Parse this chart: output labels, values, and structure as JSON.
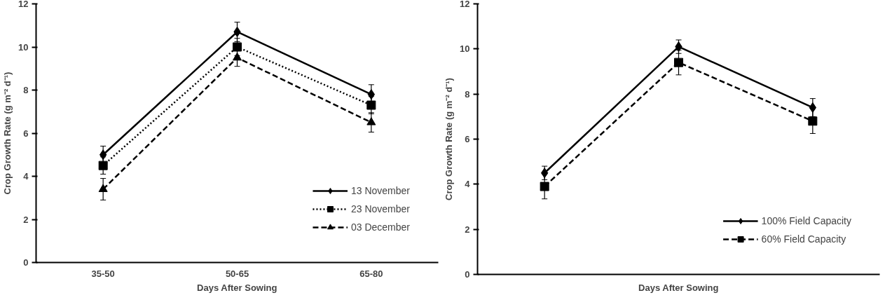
{
  "chart_data": [
    {
      "type": "line",
      "xlabel": "Days After Sowing",
      "ylabel": "Crop Growth Rate (g m⁻² d⁻¹)",
      "categories": [
        "35-50",
        "50-65",
        "65-80"
      ],
      "ylim": [
        0,
        12
      ],
      "yticks": [
        0,
        2,
        4,
        6,
        8,
        10,
        12
      ],
      "grid": false,
      "legend": "bottom right",
      "series": [
        {
          "name": "13 November",
          "color": "#000000",
          "marker": "diamond",
          "line_style": "solid",
          "values": [
            5.0,
            10.7,
            7.8
          ],
          "errors": [
            0.4,
            0.45,
            0.45
          ]
        },
        {
          "name": "23 November",
          "color": "#000000",
          "marker": "square",
          "line_style": "dotted",
          "values": [
            4.5,
            10.0,
            7.3
          ],
          "errors": [
            0.4,
            0.4,
            0.4
          ]
        },
        {
          "name": "03 December",
          "color": "#000000",
          "marker": "triangle",
          "line_style": "dashed",
          "values": [
            3.4,
            9.5,
            6.5
          ],
          "errors": [
            0.5,
            0.4,
            0.45
          ]
        }
      ]
    },
    {
      "type": "line",
      "xlabel": "Days After Sowing",
      "ylabel": "Crop Growth Rate (g m⁻² d⁻¹)",
      "categories": [
        null,
        null,
        null
      ],
      "ylim": [
        0,
        12
      ],
      "yticks": [
        0,
        2,
        4,
        6,
        8,
        10,
        12
      ],
      "grid": false,
      "legend": "bottom right",
      "tick_labels": "y",
      "series": [
        {
          "name": "100% Field Capacity",
          "color": "#000000",
          "marker": "diamond",
          "line_style": "solid",
          "values": [
            4.5,
            10.1,
            7.4
          ],
          "errors": [
            0.3,
            0.3,
            0.4
          ]
        },
        {
          "name": "60% Field Capacity",
          "color": "#000000",
          "marker": "square",
          "line_style": "dashed",
          "values": [
            3.9,
            9.4,
            6.8
          ],
          "errors": [
            0.55,
            0.55,
            0.55
          ]
        }
      ]
    }
  ]
}
